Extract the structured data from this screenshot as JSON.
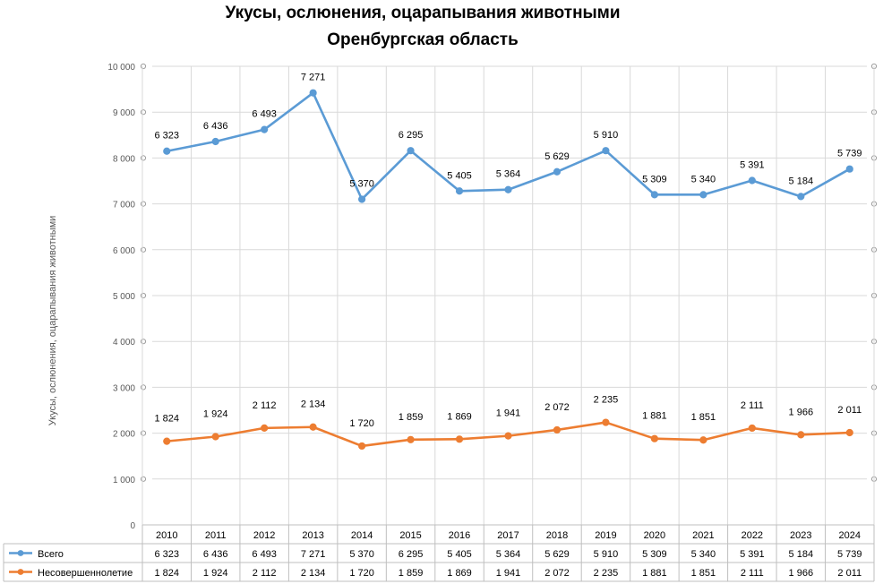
{
  "chart_data": {
    "type": "line",
    "title": "Укусы, ослюнения, оцарапывания животными",
    "subtitle": "Оренбургская область",
    "ylabel": "Укусы, ослюнения, оцарапывания животными",
    "ylim": [
      0,
      10000
    ],
    "y_ticks": [
      "0",
      "1 000",
      "2 000",
      "3 000",
      "4 000",
      "5 000",
      "6 000",
      "7 000",
      "8 000",
      "9 000",
      "10 000"
    ],
    "grid": true,
    "legend": "data-table",
    "categories": [
      "2010",
      "2011",
      "2012",
      "2013",
      "2014",
      "2015",
      "2016",
      "2017",
      "2018",
      "2019",
      "2020",
      "2021",
      "2022",
      "2023",
      "2024"
    ],
    "series": [
      {
        "name": "Всего",
        "color": "#5b9bd5",
        "plotted": [
          8150,
          8360,
          8620,
          9420,
          7100,
          8160,
          7280,
          7310,
          7700,
          8160,
          7200,
          7200,
          7510,
          7160,
          7760
        ],
        "labels": [
          "6 323",
          "6 436",
          "6 493",
          "7 271",
          "5 370",
          "6 295",
          "5 405",
          "5 364",
          "5 629",
          "5 910",
          "5 309",
          "5 340",
          "5 391",
          "5 184",
          "5 739"
        ]
      },
      {
        "name": "Несовершеннолетие",
        "color": "#ed7d31",
        "plotted": [
          1824,
          1924,
          2112,
          2134,
          1720,
          1859,
          1869,
          1941,
          2072,
          2235,
          1881,
          1851,
          2111,
          1966,
          2011
        ],
        "labels": [
          "1 824",
          "1 924",
          "2 112",
          "2 134",
          "1 720",
          "1 859",
          "1 869",
          "1 941",
          "2 072",
          "2 235",
          "1 881",
          "1 851",
          "2 111",
          "1 966",
          "2 011"
        ]
      }
    ]
  }
}
